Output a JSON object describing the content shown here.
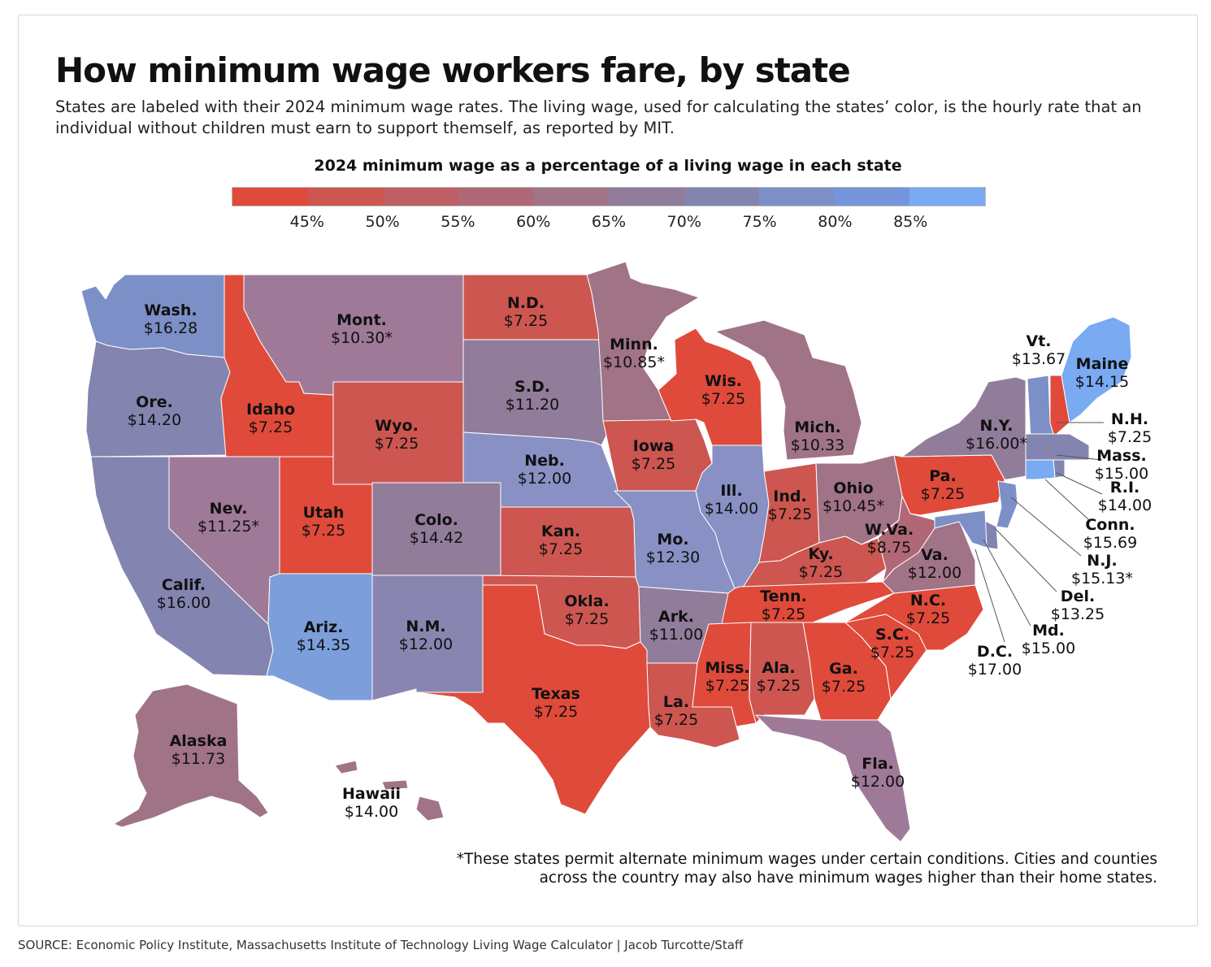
{
  "title": "How minimum wage workers fare, by state",
  "subtitle": "States are labeled with their 2024 minimum wage rates. The living wage, used for calculating the states’ color, is the hourly rate that an individual without children must earn to support themself, as reported by MIT.",
  "legend": {
    "title": "2024 minimum wage as a percentage of a living wage in each state",
    "colors": [
      "#e04a3a",
      "#cd5650",
      "#c05e65",
      "#b06876",
      "#a17387",
      "#917c9a",
      "#8484b0",
      "#7c90c7",
      "#7494db",
      "#79aaf2"
    ],
    "ticks": [
      "45%",
      "50%",
      "55%",
      "60%",
      "65%",
      "70%",
      "75%",
      "80%",
      "85%"
    ]
  },
  "states": [
    {
      "id": "wash",
      "name": "Wash.",
      "wage": "$16.28",
      "fill": "#7c90c7"
    },
    {
      "id": "ore",
      "name": "Ore.",
      "wage": "$14.20",
      "fill": "#8484b0"
    },
    {
      "id": "calif",
      "name": "Calif.",
      "wage": "$16.00",
      "fill": "#8484b0"
    },
    {
      "id": "idaho",
      "name": "Idaho",
      "wage": "$7.25",
      "fill": "#e04a3a"
    },
    {
      "id": "nev",
      "name": "Nev.",
      "wage": "$11.25*",
      "fill": "#9f7a98"
    },
    {
      "id": "mont",
      "name": "Mont.",
      "wage": "$10.30*",
      "fill": "#9f7a98"
    },
    {
      "id": "wyo",
      "name": "Wyo.",
      "wage": "$7.25",
      "fill": "#cd5650"
    },
    {
      "id": "utah",
      "name": "Utah",
      "wage": "$7.25",
      "fill": "#e04a3a"
    },
    {
      "id": "ariz",
      "name": "Ariz.",
      "wage": "$14.35",
      "fill": "#7c9fdc"
    },
    {
      "id": "colo",
      "name": "Colo.",
      "wage": "$14.42",
      "fill": "#917c9a"
    },
    {
      "id": "nm",
      "name": "N.M.",
      "wage": "$12.00",
      "fill": "#8886b0"
    },
    {
      "id": "nd",
      "name": "N.D.",
      "wage": "$7.25",
      "fill": "#cd5650"
    },
    {
      "id": "sd",
      "name": "S.D.",
      "wage": "$11.20",
      "fill": "#917c9a"
    },
    {
      "id": "neb",
      "name": "Neb.",
      "wage": "$12.00",
      "fill": "#8890c4"
    },
    {
      "id": "kan",
      "name": "Kan.",
      "wage": "$7.25",
      "fill": "#cd5650"
    },
    {
      "id": "okla",
      "name": "Okla.",
      "wage": "$7.25",
      "fill": "#cd5650"
    },
    {
      "id": "texas",
      "name": "Texas",
      "wage": "$7.25",
      "fill": "#e04a3a"
    },
    {
      "id": "minn",
      "name": "Minn.",
      "wage": "$10.85*",
      "fill": "#a17387"
    },
    {
      "id": "iowa",
      "name": "Iowa",
      "wage": "$7.25",
      "fill": "#cd5650"
    },
    {
      "id": "mo",
      "name": "Mo.",
      "wage": "$12.30",
      "fill": "#8890c4"
    },
    {
      "id": "ark",
      "name": "Ark.",
      "wage": "$11.00",
      "fill": "#917c9a"
    },
    {
      "id": "la",
      "name": "La.",
      "wage": "$7.25",
      "fill": "#cd5650"
    },
    {
      "id": "wis",
      "name": "Wis.",
      "wage": "$7.25",
      "fill": "#e04a3a"
    },
    {
      "id": "ill",
      "name": "Ill.",
      "wage": "$14.00",
      "fill": "#8890c4"
    },
    {
      "id": "mich",
      "name": "Mich.",
      "wage": "$10.33",
      "fill": "#a17387"
    },
    {
      "id": "ind",
      "name": "Ind.",
      "wage": "$7.25",
      "fill": "#cd5650"
    },
    {
      "id": "ohio",
      "name": "Ohio",
      "wage": "$10.45*",
      "fill": "#a17387"
    },
    {
      "id": "ky",
      "name": "Ky.",
      "wage": "$7.25",
      "fill": "#cd5650"
    },
    {
      "id": "tenn",
      "name": "Tenn.",
      "wage": "$7.25",
      "fill": "#e04a3a"
    },
    {
      "id": "miss",
      "name": "Miss.",
      "wage": "$7.25",
      "fill": "#e04a3a"
    },
    {
      "id": "ala",
      "name": "Ala.",
      "wage": "$7.25",
      "fill": "#cd5650"
    },
    {
      "id": "ga",
      "name": "Ga.",
      "wage": "$7.25",
      "fill": "#e04a3a"
    },
    {
      "id": "fla",
      "name": "Fla.",
      "wage": "$12.00",
      "fill": "#9f7a98"
    },
    {
      "id": "sc",
      "name": "S.C.",
      "wage": "$7.25",
      "fill": "#e04a3a"
    },
    {
      "id": "nc",
      "name": "N.C.",
      "wage": "$7.25",
      "fill": "#e04a3a"
    },
    {
      "id": "va",
      "name": "Va.",
      "wage": "$12.00",
      "fill": "#a17387"
    },
    {
      "id": "wva",
      "name": "W.Va.",
      "wage": "$8.75",
      "fill": "#b06876"
    },
    {
      "id": "pa",
      "name": "Pa.",
      "wage": "$7.25",
      "fill": "#e04a3a"
    },
    {
      "id": "ny",
      "name": "N.Y.",
      "wage": "$16.00*",
      "fill": "#917c9a"
    },
    {
      "id": "vt",
      "name": "Vt.",
      "wage": "$13.67",
      "fill": "#7c90c7"
    },
    {
      "id": "nh",
      "name": "N.H.",
      "wage": "$7.25",
      "fill": "#e04a3a"
    },
    {
      "id": "maine",
      "name": "Maine",
      "wage": "$14.15",
      "fill": "#79aaf2"
    },
    {
      "id": "mass",
      "name": "Mass.",
      "wage": "$15.00",
      "fill": "#8484b0"
    },
    {
      "id": "ri",
      "name": "R.I.",
      "wage": "$14.00",
      "fill": "#8484b0"
    },
    {
      "id": "conn",
      "name": "Conn.",
      "wage": "$15.69",
      "fill": "#79aaf2"
    },
    {
      "id": "nj",
      "name": "N.J.",
      "wage": "$15.13*",
      "fill": "#7c90c7"
    },
    {
      "id": "del",
      "name": "Del.",
      "wage": "$13.25",
      "fill": "#8484b0"
    },
    {
      "id": "md",
      "name": "Md.",
      "wage": "$15.00",
      "fill": "#7c90c7"
    },
    {
      "id": "dc",
      "name": "D.C.",
      "wage": "$17.00",
      "fill": "#79aaf2"
    },
    {
      "id": "alaska",
      "name": "Alaska",
      "wage": "$11.73",
      "fill": "#a17387"
    },
    {
      "id": "hawaii",
      "name": "Hawaii",
      "wage": "$14.00",
      "fill": "#a17387"
    }
  ],
  "footnote": "*These states permit alternate minimum wages under certain conditions. Cities and counties across the country may also have minimum wages higher than their home states.",
  "source": "SOURCE: Economic Policy Institute, Massachusetts Institute of Technology Living Wage Calculator  | Jacob Turcotte/Staff"
}
